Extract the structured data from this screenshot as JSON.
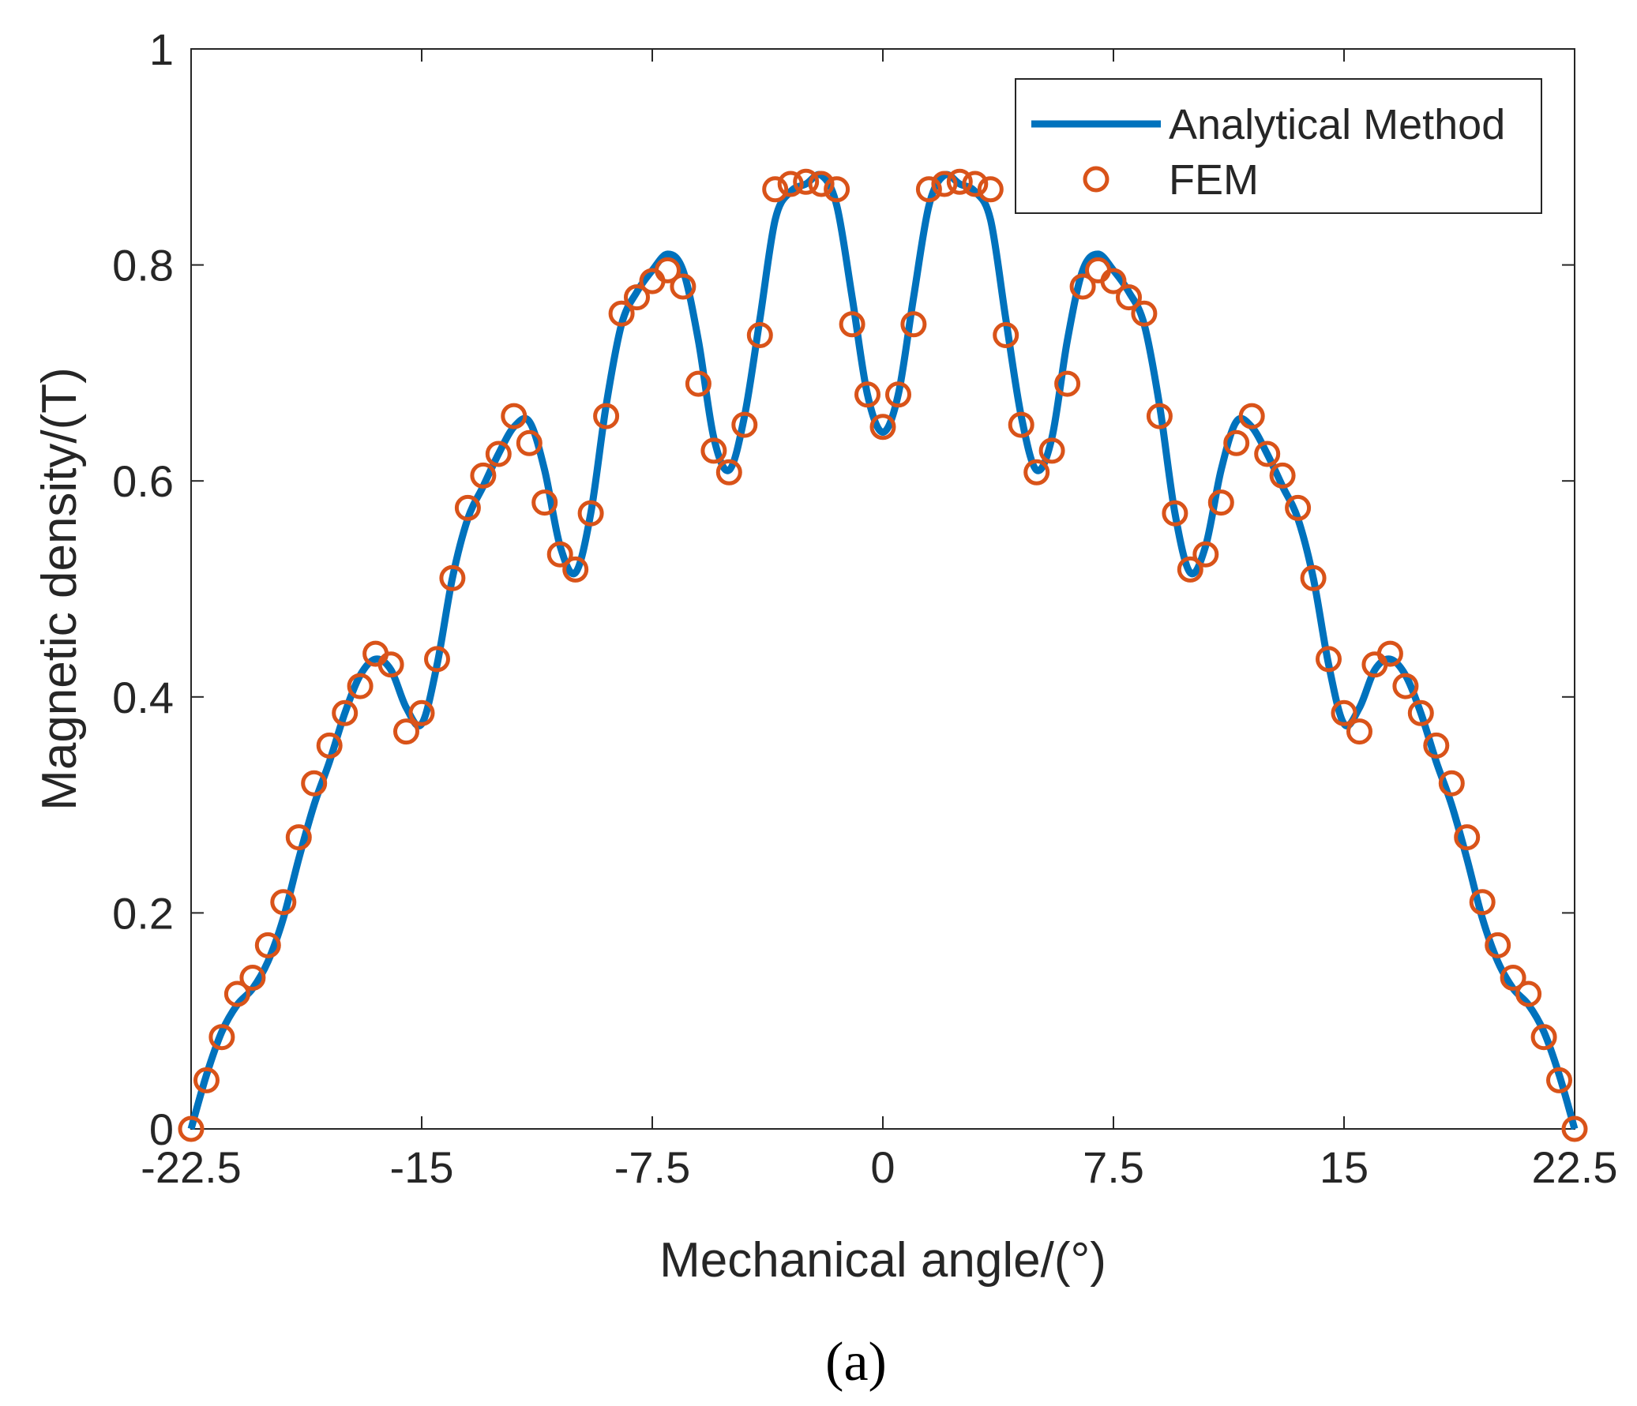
{
  "chart_data": {
    "type": "line",
    "title": "",
    "xlabel": "Mechanical angle/(°)",
    "ylabel": "Magnetic density/(T)",
    "caption": "(a)",
    "xlim": [
      -22.5,
      22.5
    ],
    "ylim": [
      0,
      1
    ],
    "xticks": [
      -22.5,
      -15,
      -7.5,
      0,
      7.5,
      15,
      22.5
    ],
    "xtick_labels": [
      "-22.5",
      "-15",
      "-7.5",
      "0",
      "7.5",
      "15",
      "22.5"
    ],
    "yticks": [
      0,
      0.2,
      0.4,
      0.6,
      0.8,
      1
    ],
    "ytick_labels": [
      "0",
      "0.2",
      "0.4",
      "0.6",
      "0.8",
      "1"
    ],
    "grid": false,
    "legend_position": "top-right",
    "colors": {
      "analytical": "#0072BD",
      "fem": "#D95319"
    },
    "series": [
      {
        "name": "Analytical Method",
        "style": "line",
        "x": [
          0.0,
          0.5,
          1.0,
          1.5,
          2.0,
          2.5,
          3.0,
          3.5,
          4.0,
          4.5,
          5.0,
          5.5,
          6.0,
          6.5,
          7.0,
          7.5,
          8.0,
          8.5,
          9.0,
          9.5,
          10.0,
          10.5,
          11.0,
          11.5,
          12.0,
          12.5,
          13.0,
          13.5,
          14.0,
          14.5,
          15.0,
          15.5,
          16.0,
          16.5,
          17.0,
          17.5,
          18.0,
          18.5,
          19.0,
          19.5,
          20.0,
          20.5,
          21.0,
          21.5,
          22.0,
          22.5
        ],
        "y": [
          0.645,
          0.68,
          0.77,
          0.855,
          0.883,
          0.875,
          0.868,
          0.842,
          0.75,
          0.66,
          0.61,
          0.64,
          0.73,
          0.795,
          0.81,
          0.795,
          0.775,
          0.745,
          0.67,
          0.57,
          0.515,
          0.54,
          0.61,
          0.655,
          0.65,
          0.625,
          0.595,
          0.565,
          0.51,
          0.43,
          0.375,
          0.39,
          0.425,
          0.435,
          0.42,
          0.385,
          0.34,
          0.3,
          0.25,
          0.195,
          0.155,
          0.13,
          0.115,
          0.09,
          0.05,
          0.0
        ]
      },
      {
        "name": "FEM",
        "style": "marker",
        "x": [
          0.0,
          0.5,
          1.0,
          1.5,
          2.0,
          2.5,
          3.0,
          3.5,
          4.0,
          4.5,
          5.0,
          5.5,
          6.0,
          6.5,
          7.0,
          7.5,
          8.0,
          8.5,
          9.0,
          9.5,
          10.0,
          10.5,
          11.0,
          11.5,
          12.0,
          12.5,
          13.0,
          13.5,
          14.0,
          14.5,
          15.0,
          15.5,
          16.0,
          16.5,
          17.0,
          17.5,
          18.0,
          18.5,
          19.0,
          19.5,
          20.0,
          20.5,
          21.0,
          21.5,
          22.0,
          22.5
        ],
        "y": [
          0.65,
          0.68,
          0.745,
          0.87,
          0.875,
          0.877,
          0.875,
          0.87,
          0.735,
          0.652,
          0.608,
          0.628,
          0.69,
          0.78,
          0.795,
          0.785,
          0.77,
          0.755,
          0.66,
          0.57,
          0.518,
          0.532,
          0.58,
          0.635,
          0.66,
          0.625,
          0.605,
          0.575,
          0.51,
          0.435,
          0.385,
          0.368,
          0.43,
          0.44,
          0.41,
          0.385,
          0.355,
          0.32,
          0.27,
          0.21,
          0.17,
          0.14,
          0.125,
          0.085,
          0.045,
          0.0
        ]
      }
    ]
  }
}
